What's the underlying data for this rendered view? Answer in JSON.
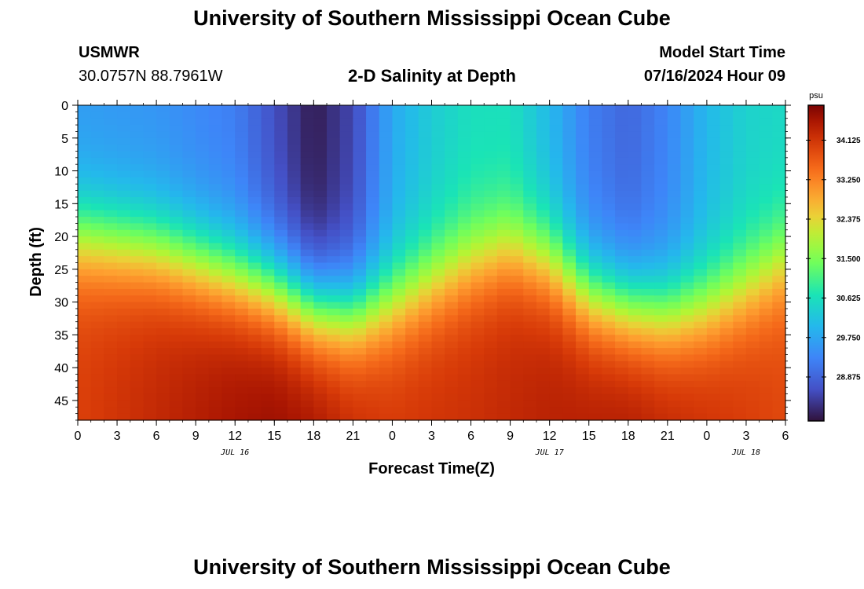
{
  "header": {
    "title": "University of Southern Mississippi Ocean Cube",
    "station": "USMWR",
    "coordinates": "30.0757N  88.7961W",
    "subtitle": "2-D Salinity at Depth",
    "start_label": "Model Start Time",
    "start_value": "07/16/2024 Hour 09"
  },
  "footer": {
    "title": "University of Southern Mississippi Ocean Cube"
  },
  "chart_data": {
    "type": "heatmap",
    "title": "2-D Salinity at Depth",
    "xlabel": "Forecast Time(Z)",
    "ylabel": "Depth (ft)",
    "x_ticks": [
      "0",
      "3",
      "6",
      "9",
      "12",
      "15",
      "18",
      "21",
      "0",
      "3",
      "6",
      "9",
      "12",
      "15",
      "18",
      "21",
      "0",
      "3",
      "6"
    ],
    "x_hours": [
      0,
      54
    ],
    "date_labels": [
      {
        "label": "JUL 16",
        "hour": 12
      },
      {
        "label": "JUL 17",
        "hour": 36
      },
      {
        "label": "JUL 18",
        "hour": 51
      }
    ],
    "y_ticks": [
      0,
      5,
      10,
      15,
      20,
      25,
      30,
      35,
      40,
      45
    ],
    "ylim": [
      0,
      48
    ],
    "y_inverted": true,
    "colorbar": {
      "unit": "psu",
      "min": 27.9,
      "max": 34.9,
      "ticks": [
        34.125,
        33.25,
        32.375,
        31.5,
        30.625,
        29.75,
        28.875
      ],
      "tick_labels": [
        "34.125",
        "33.250",
        "32.375",
        "31.500",
        "30.625",
        "29.750",
        "28.875"
      ],
      "colormap": "turbo"
    },
    "description": "Salinity vs forecast hour and depth",
    "grid_resolution": {
      "hours_step": 1,
      "depth_step": 1
    },
    "surface_salinity_by_hour": [
      [
        0,
        29.6
      ],
      [
        6,
        29.5
      ],
      [
        12,
        29.2
      ],
      [
        15,
        28.6
      ],
      [
        18,
        28.0
      ],
      [
        21,
        28.5
      ],
      [
        24,
        29.8
      ],
      [
        27,
        30.3
      ],
      [
        30,
        30.6
      ],
      [
        33,
        30.6
      ],
      [
        36,
        30.0
      ],
      [
        39,
        29.2
      ],
      [
        42,
        28.9
      ],
      [
        45,
        29.3
      ],
      [
        48,
        30.0
      ],
      [
        51,
        30.4
      ],
      [
        54,
        30.5
      ]
    ],
    "halocline_depth_by_hour": [
      [
        0,
        20
      ],
      [
        6,
        22
      ],
      [
        12,
        26
      ],
      [
        15,
        28
      ],
      [
        18,
        31
      ],
      [
        21,
        32
      ],
      [
        24,
        30
      ],
      [
        27,
        27
      ],
      [
        30,
        24
      ],
      [
        33,
        22
      ],
      [
        36,
        24
      ],
      [
        39,
        29
      ],
      [
        42,
        31
      ],
      [
        45,
        32
      ],
      [
        48,
        31
      ],
      [
        51,
        28
      ],
      [
        54,
        24
      ]
    ],
    "bottom_salinity_by_hour": [
      [
        0,
        34.0
      ],
      [
        6,
        34.3
      ],
      [
        12,
        34.6
      ],
      [
        15,
        34.7
      ],
      [
        18,
        34.6
      ],
      [
        21,
        34.3
      ],
      [
        24,
        34.1
      ],
      [
        30,
        34.2
      ],
      [
        36,
        34.4
      ],
      [
        42,
        34.5
      ],
      [
        48,
        34.2
      ],
      [
        54,
        33.9
      ]
    ]
  }
}
